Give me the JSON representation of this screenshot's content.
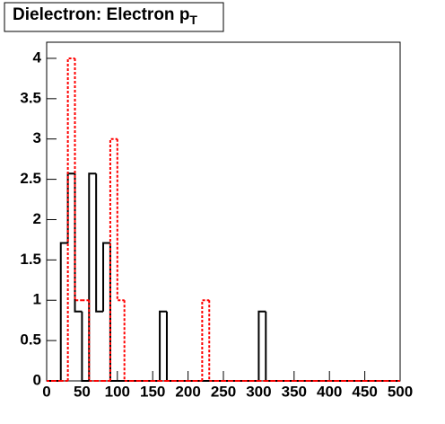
{
  "chart_data": {
    "type": "histogram",
    "title": "Dielectron: Electron p",
    "title_subscript": "T",
    "bins": [
      0,
      10,
      20,
      30,
      40,
      50,
      60,
      70,
      80,
      90,
      100,
      110,
      120,
      130,
      140,
      150,
      160,
      170,
      180,
      190,
      200,
      210,
      220,
      230,
      240,
      250,
      260,
      270,
      280,
      290,
      300,
      310,
      320,
      330,
      340,
      350,
      360,
      370,
      380,
      390,
      400,
      410,
      420,
      430,
      440,
      450,
      460,
      470,
      480,
      490,
      500
    ],
    "series": [
      {
        "color": "#000000",
        "line_style": "solid",
        "values": [
          0,
          0,
          1.71,
          2.57,
          0.86,
          0,
          2.57,
          0.86,
          1.71,
          0,
          0,
          0,
          0,
          0,
          0,
          0,
          0.86,
          0,
          0,
          0,
          0,
          0,
          0,
          0,
          0,
          0,
          0,
          0,
          0,
          0,
          0.86,
          0,
          0,
          0,
          0,
          0,
          0,
          0,
          0,
          0,
          0,
          0,
          0,
          0,
          0,
          0,
          0,
          0,
          0,
          0
        ]
      },
      {
        "color": "#ff0000",
        "line_style": "dashed",
        "values": [
          0,
          0,
          0,
          4,
          1,
          1,
          0,
          0,
          0,
          3,
          1,
          0,
          0,
          0,
          0,
          0,
          0,
          0,
          0,
          0,
          0,
          0,
          1,
          0,
          0,
          0,
          0,
          0,
          0,
          0,
          0,
          0,
          0,
          0,
          0,
          0,
          0,
          0,
          0,
          0,
          0,
          0,
          0,
          0,
          0,
          0,
          0,
          0,
          0,
          0
        ]
      }
    ],
    "xlim": [
      0,
      500
    ],
    "xticks": [
      0,
      50,
      100,
      150,
      200,
      250,
      300,
      350,
      400,
      450,
      500
    ],
    "ylim": [
      0,
      4.2
    ],
    "yticks": [
      0,
      0.5,
      1,
      1.5,
      2,
      2.5,
      3,
      3.5,
      4
    ]
  }
}
